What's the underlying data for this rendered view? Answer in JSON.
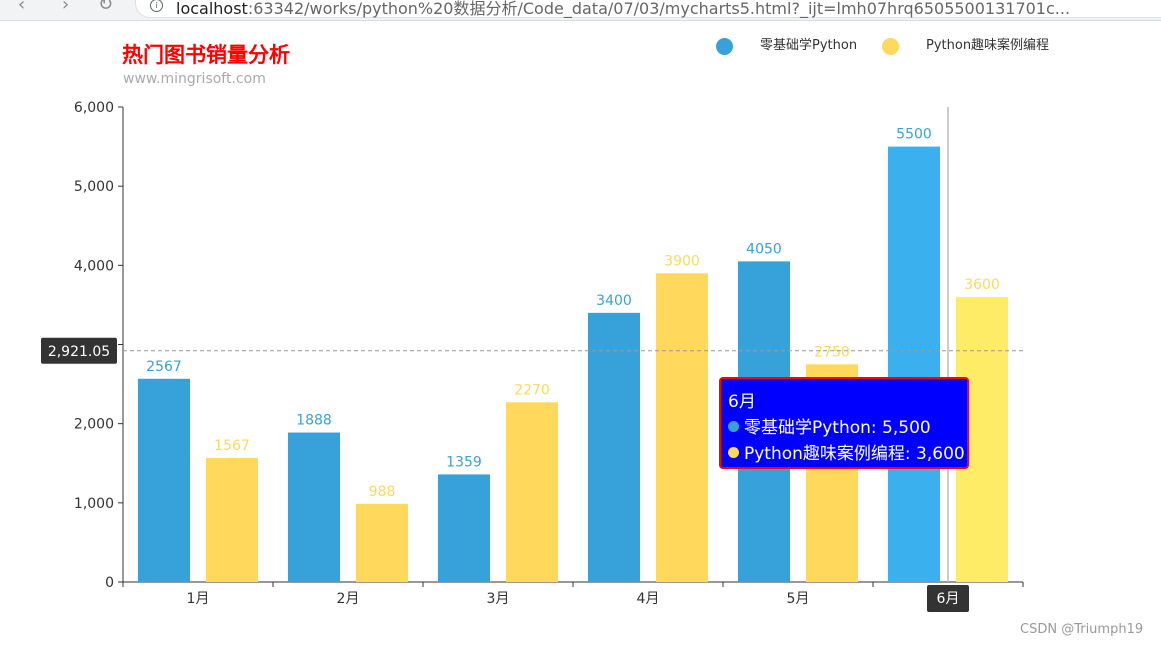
{
  "browser": {
    "back_glyph": "‹",
    "forward_glyph": "›",
    "reload_glyph": "↻",
    "info_icon": "i",
    "url_host": "localhost",
    "url_rest": ":63342/works/python%20数据分析/Code_data/07/03/mycharts5.html?_ijt=lmh07hrq6505500131701c...",
    "icons": {
      "back": "back-arrow-icon",
      "forward": "forward-arrow-icon",
      "reload": "reload-icon",
      "info": "info-icon"
    }
  },
  "chart_data": {
    "type": "bar",
    "title": "热门图书销量分析",
    "subtitle": "www.mingrisoft.com",
    "categories": [
      "1月",
      "2月",
      "3月",
      "4月",
      "5月",
      "6月"
    ],
    "series": [
      {
        "name": "零基础学Python",
        "values": [
          2567,
          1888,
          1359,
          3400,
          4050,
          5500
        ],
        "color": "#37a2da"
      },
      {
        "name": "Python趣味案例编程",
        "values": [
          1567,
          988,
          2270,
          3900,
          2750,
          3600
        ],
        "color": "#ffd85c"
      }
    ],
    "ylim": [
      0,
      6000
    ],
    "yticks": [
      0,
      1000,
      2000,
      3000,
      4000,
      5000,
      6000
    ],
    "ytick_labels": [
      "0",
      "1,000",
      "2,000",
      "3,000",
      "4,000",
      "5,000",
      "6,000"
    ],
    "legend_position": "top-right",
    "grid": false,
    "axis_pointer": {
      "y_label": "2,921.05",
      "y_value": 2921.05,
      "x_label": "6月",
      "category_index": 5
    },
    "highlight_colors": [
      "#3ab0ee",
      "#ffec66"
    ]
  },
  "tooltip": {
    "title": "6月",
    "rows": [
      {
        "text": "零基础学Python: 5,500",
        "color": "#37a2da"
      },
      {
        "text": "Python趣味案例编程: 3,600",
        "color": "#ffd85c"
      }
    ],
    "background": "#0000ff",
    "border": "#ff0000"
  },
  "watermark": "CSDN @Triumph19"
}
